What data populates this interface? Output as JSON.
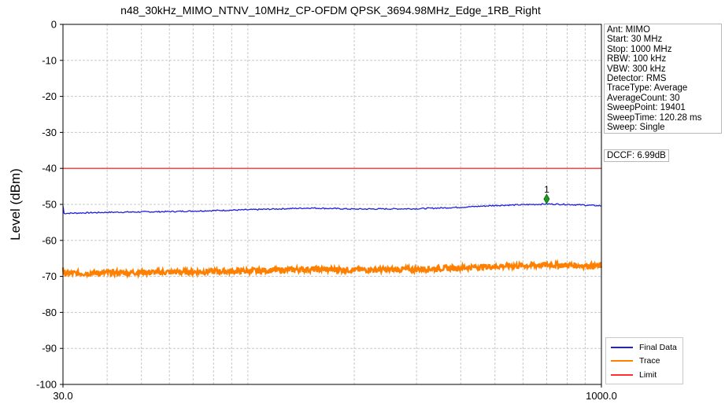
{
  "chart_data": {
    "type": "line",
    "title": "n48_30kHz_MIMO_NTNV_10MHz_CP-OFDM QPSK_3694.98MHz_Edge_1RB_Right",
    "xlabel": "",
    "ylabel": "Level (dBm)",
    "x_scale": "log",
    "xlim": [
      30,
      1000
    ],
    "ylim": [
      -100,
      0
    ],
    "x_tick_labels": [
      "30.0",
      "1000.0"
    ],
    "y_ticks": [
      0,
      -10,
      -20,
      -30,
      -40,
      -50,
      -60,
      -70,
      -80,
      -90,
      -100
    ],
    "grid": true,
    "legend_position": "bottom-right",
    "series": [
      {
        "name": "Final Data",
        "color": "#1f1fe0",
        "x": [
          30,
          40,
          60,
          100,
          150,
          200,
          300,
          400,
          500,
          600,
          700,
          800,
          900,
          1000
        ],
        "y": [
          -52.5,
          -52.2,
          -52,
          -51.5,
          -51,
          -51.3,
          -51.2,
          -50.8,
          -50.3,
          -50.1,
          -49.9,
          -50,
          -50.2,
          -50.4
        ]
      },
      {
        "name": "Trace",
        "color": "#ff8000",
        "x": [
          30,
          40,
          60,
          100,
          150,
          200,
          300,
          400,
          500,
          600,
          700,
          800,
          900,
          1000
        ],
        "y": [
          -69.2,
          -69,
          -68.8,
          -68.5,
          -68,
          -68.2,
          -68,
          -67.6,
          -67.2,
          -67,
          -66.8,
          -66.9,
          -67,
          -67.1
        ]
      },
      {
        "name": "Limit",
        "color": "#ff3030",
        "x": [
          30,
          1000
        ],
        "y": [
          -40,
          -40
        ]
      }
    ],
    "marker": {
      "label": "1",
      "x": 700,
      "y": -48.5,
      "color": "#1a9a1a"
    }
  },
  "info": {
    "lines": [
      "Ant: MIMO",
      "Start: 30 MHz",
      "Stop: 1000 MHz",
      "RBW: 100 kHz",
      "VBW: 300 kHz",
      "Detector: RMS",
      "TraceType: Average",
      "AverageCount: 30",
      "SweepPoint: 19401",
      "SweepTime: 120.28 ms",
      "Sweep: Single"
    ],
    "dccf": "DCCF: 6.99dB"
  }
}
